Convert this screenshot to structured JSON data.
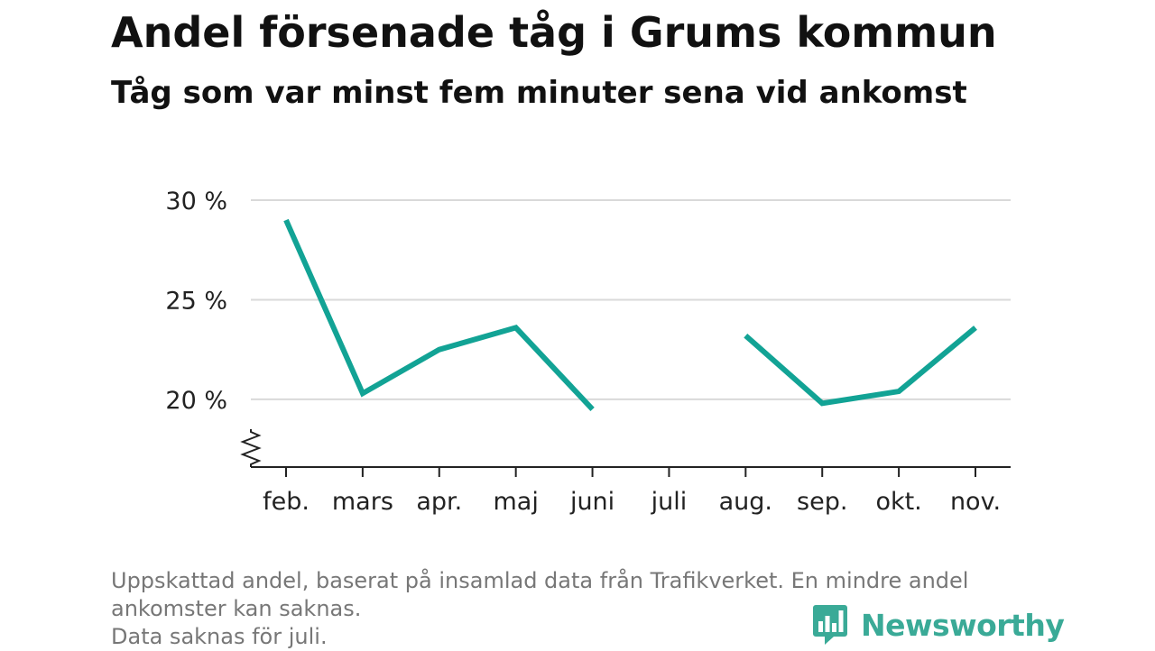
{
  "title": "Andel försenade tåg i Grums kommun",
  "subtitle": "Tåg som var minst fem minuter sena vid ankomst",
  "footnote": {
    "line1": "Uppskattad andel, baserat på insamlad data från Trafikverket. En mindre andel",
    "line2": "ankomster kan saknas.",
    "line3": "Data saknas för juli."
  },
  "brand": {
    "name": "Newsworthy",
    "icon": "newsworthy-logo-icon"
  },
  "colors": {
    "line": "#12a395",
    "grid": "#d9d9d9",
    "axis": "#222222",
    "brand": "#3aaa97"
  },
  "chart_data": {
    "type": "line",
    "title": "Andel försenade tåg i Grums kommun",
    "subtitle": "Tåg som var minst fem minuter sena vid ankomst",
    "categories": [
      "feb.",
      "mars",
      "apr.",
      "maj",
      "juni",
      "juli",
      "aug.",
      "sep.",
      "okt.",
      "nov."
    ],
    "values": [
      29.0,
      20.3,
      22.5,
      23.6,
      19.5,
      null,
      23.2,
      19.8,
      20.4,
      23.6
    ],
    "yticks": [
      20,
      25,
      30
    ],
    "ytick_labels": [
      "20 %",
      "25 %",
      "30 %"
    ],
    "ylim": [
      16.6,
      30
    ],
    "y_axis_break": true,
    "grid": true,
    "xlabel": "",
    "ylabel": ""
  }
}
